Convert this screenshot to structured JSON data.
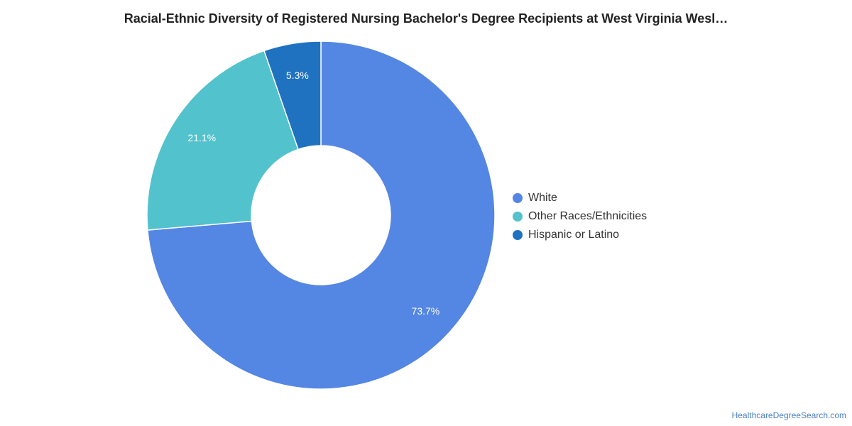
{
  "chart_data": {
    "type": "pie",
    "variant": "donut",
    "title": "Racial-Ethnic Diversity of Registered Nursing Bachelor's Degree Recipients at West Virginia Wesl…",
    "categories": [
      "White",
      "Other Races/Ethnicities",
      "Hispanic or Latino"
    ],
    "values": [
      73.7,
      21.1,
      5.3
    ],
    "value_labels": [
      "73.7%",
      "21.1%",
      "5.3%"
    ],
    "colors": [
      "#5486e3",
      "#52c2cd",
      "#1f72c0"
    ],
    "legend_position": "right"
  },
  "watermark": "HealthcareDegreeSearch.com"
}
